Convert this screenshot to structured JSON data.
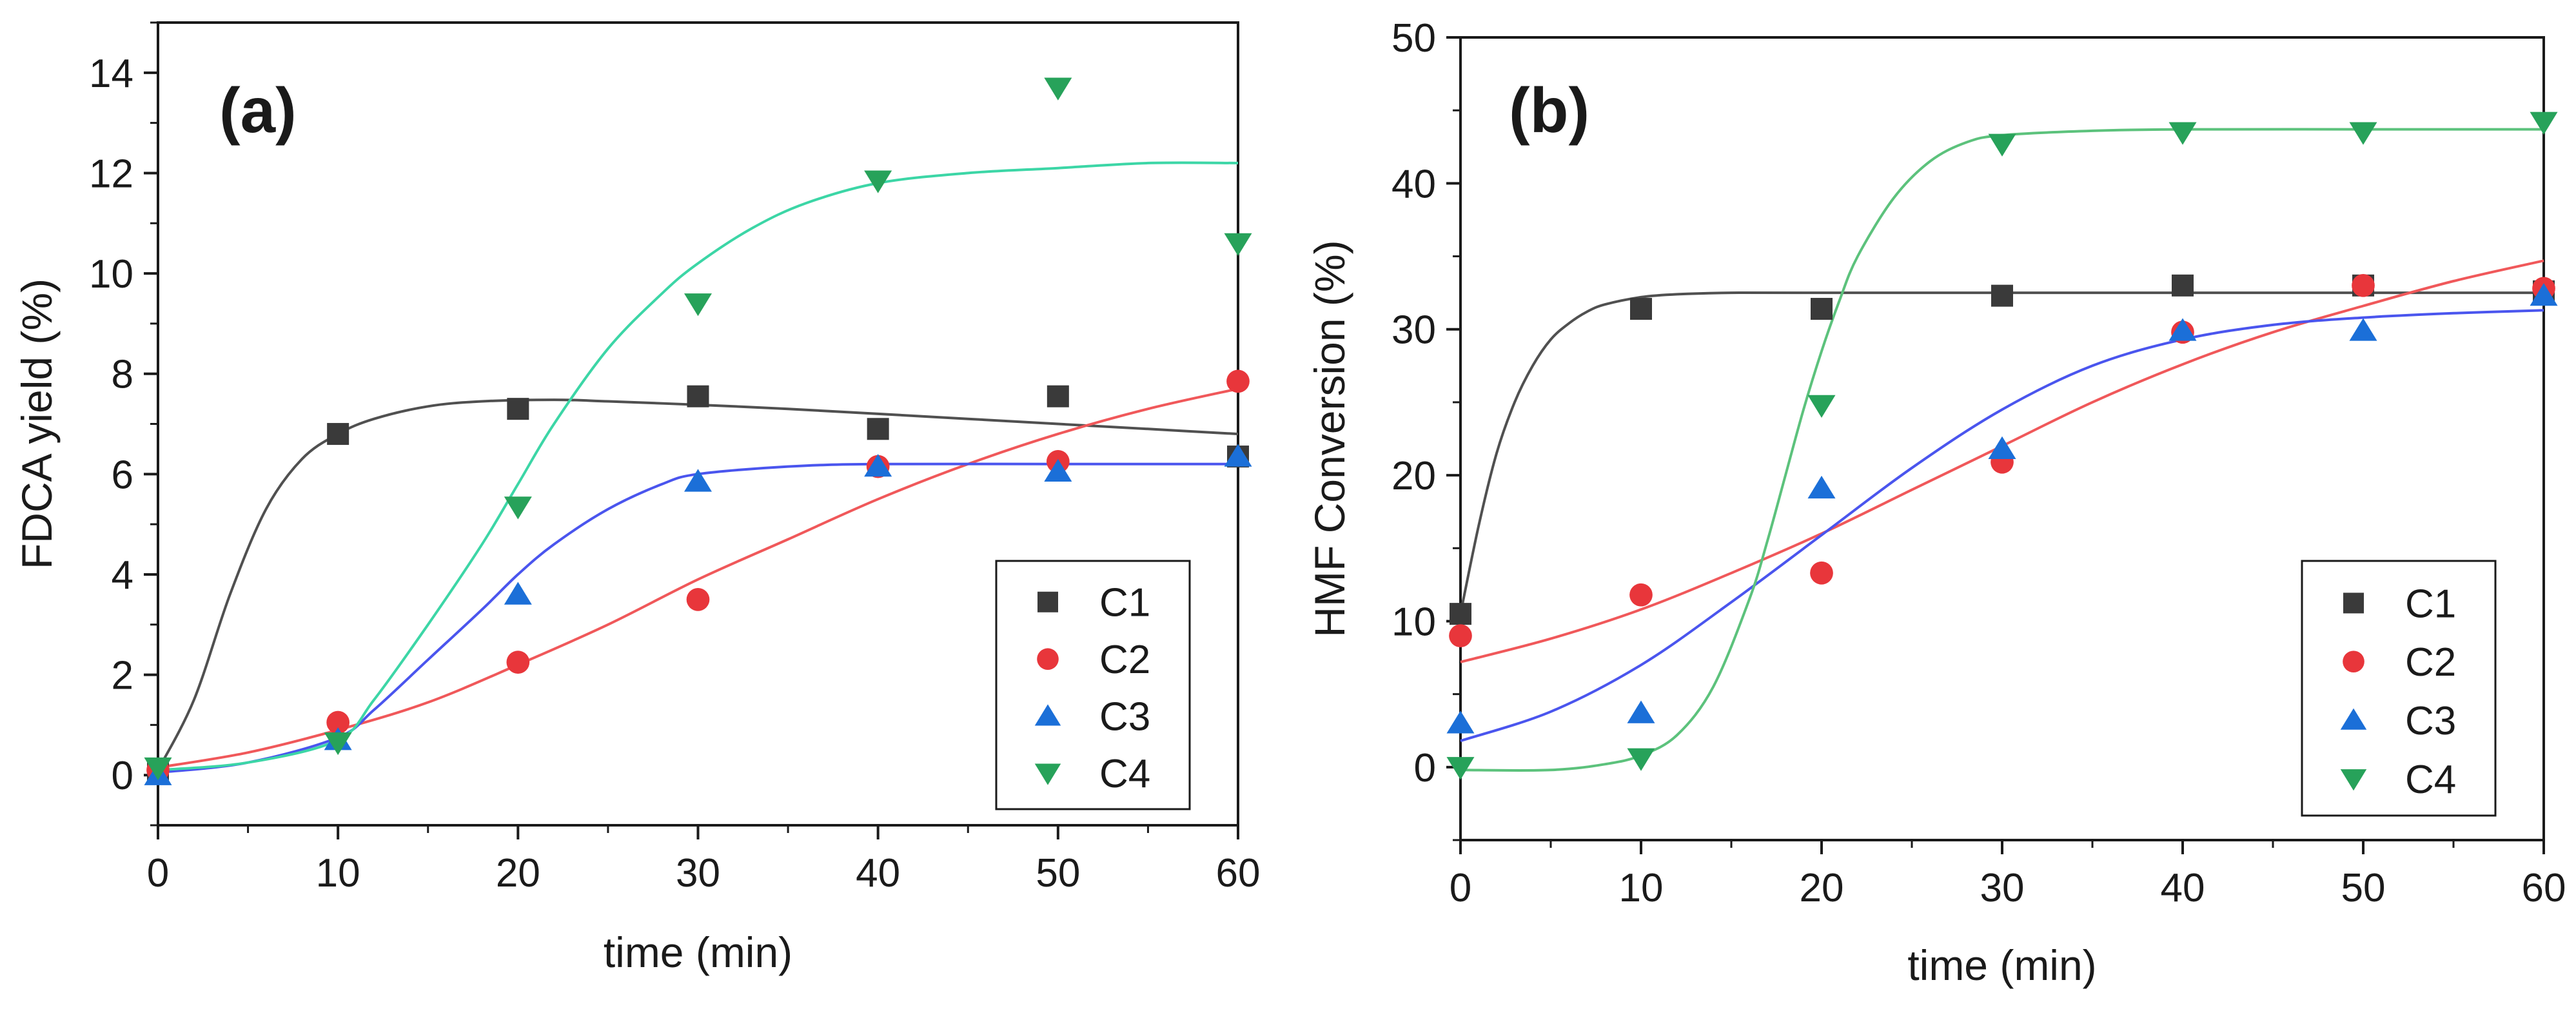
{
  "chart_data": [
    {
      "type": "scatter",
      "panel_label": "(a)",
      "xlabel": "time (min)",
      "ylabel": "FDCA yield (%)",
      "xlim": [
        0,
        60
      ],
      "ylim": [
        -1,
        15
      ],
      "xticks": [
        0,
        10,
        20,
        30,
        40,
        50,
        60
      ],
      "yticks": [
        0,
        2,
        4,
        6,
        8,
        10,
        12,
        14
      ],
      "legend_position": "bottom-right",
      "series": [
        {
          "name": "C1",
          "marker": "square",
          "color": "#3a3a3a",
          "fit_color": "#505050",
          "x": [
            0,
            10,
            20,
            30,
            40,
            50,
            60
          ],
          "y": [
            0.1,
            6.8,
            7.3,
            7.55,
            6.9,
            7.55,
            6.35
          ],
          "fit": {
            "x": [
              0,
              2,
              4,
              6,
              8,
              10,
              12,
              15,
              18,
              22,
              25,
              30,
              35,
              40,
              45,
              50,
              55,
              60
            ],
            "y": [
              0.1,
              1.5,
              3.6,
              5.3,
              6.3,
              6.8,
              7.1,
              7.35,
              7.45,
              7.48,
              7.45,
              7.38,
              7.3,
              7.2,
              7.1,
              7.0,
              6.9,
              6.8
            ]
          }
        },
        {
          "name": "C2",
          "marker": "circle",
          "color": "#e8363b",
          "fit_color": "#f0585a",
          "x": [
            0,
            10,
            20,
            30,
            40,
            50,
            60
          ],
          "y": [
            0.1,
            1.05,
            2.25,
            3.5,
            6.15,
            6.25,
            7.85
          ],
          "fit": {
            "x": [
              0,
              5,
              10,
              15,
              20,
              25,
              30,
              35,
              40,
              45,
              50,
              55,
              60
            ],
            "y": [
              0.15,
              0.45,
              0.9,
              1.45,
              2.2,
              3.0,
              3.9,
              4.7,
              5.5,
              6.2,
              6.8,
              7.3,
              7.7
            ]
          }
        },
        {
          "name": "C3",
          "marker": "triangle-up",
          "color": "#1b6fd8",
          "fit_color": "#4a55ee",
          "x": [
            0,
            10,
            20,
            30,
            40,
            50,
            60
          ],
          "y": [
            0.0,
            0.7,
            3.6,
            5.85,
            6.15,
            6.05,
            6.35
          ],
          "fit": {
            "x": [
              0,
              5,
              10,
              12,
              15,
              18,
              20,
              22,
              25,
              28,
              30,
              35,
              40,
              50,
              60
            ],
            "y": [
              0.05,
              0.25,
              0.75,
              1.3,
              2.3,
              3.3,
              4.0,
              4.6,
              5.3,
              5.8,
              6.0,
              6.15,
              6.2,
              6.2,
              6.2
            ]
          }
        },
        {
          "name": "C4",
          "marker": "triangle-down",
          "color": "#27a25a",
          "fit_color": "#3cd6a6",
          "x": [
            0,
            10,
            20,
            30,
            40,
            50,
            60
          ],
          "y": [
            0.15,
            0.65,
            5.35,
            9.4,
            11.85,
            13.7,
            10.6
          ],
          "fit": {
            "x": [
              0,
              5,
              10,
              12,
              15,
              18,
              20,
              22,
              25,
              28,
              30,
              33,
              36,
              40,
              45,
              50,
              55,
              60
            ],
            "y": [
              0.1,
              0.25,
              0.7,
              1.5,
              3.0,
              4.6,
              5.8,
              7.0,
              8.5,
              9.6,
              10.2,
              10.9,
              11.4,
              11.8,
              12.0,
              12.1,
              12.2,
              12.2
            ]
          }
        }
      ]
    },
    {
      "type": "scatter",
      "panel_label": "(b)",
      "xlabel": "time (min)",
      "ylabel": "HMF Conversion (%)",
      "xlim": [
        0,
        60
      ],
      "ylim": [
        -5,
        50
      ],
      "xticks": [
        0,
        10,
        20,
        30,
        40,
        50,
        60
      ],
      "yticks": [
        0,
        10,
        20,
        30,
        40,
        50
      ],
      "legend_position": "bottom-right",
      "series": [
        {
          "name": "C1",
          "marker": "square",
          "color": "#3a3a3a",
          "fit_color": "#505050",
          "x": [
            0,
            10,
            20,
            30,
            40,
            50,
            60
          ],
          "y": [
            10.5,
            31.4,
            31.4,
            32.3,
            33.0,
            33.0,
            32.6
          ],
          "fit": {
            "x": [
              0,
              1,
              2,
              3,
              4,
              5,
              6,
              7,
              8,
              10,
              12,
              15,
              20,
              30,
              40,
              50,
              60
            ],
            "y": [
              10.5,
              16.5,
              21.5,
              25.0,
              27.5,
              29.3,
              30.4,
              31.2,
              31.7,
              32.2,
              32.4,
              32.5,
              32.5,
              32.5,
              32.5,
              32.5,
              32.5
            ]
          }
        },
        {
          "name": "C2",
          "marker": "circle",
          "color": "#e8363b",
          "fit_color": "#f0585a",
          "x": [
            0,
            10,
            20,
            30,
            40,
            50,
            60
          ],
          "y": [
            9.0,
            11.8,
            13.3,
            20.9,
            29.8,
            33.0,
            32.8
          ],
          "fit": {
            "x": [
              0,
              5,
              10,
              15,
              20,
              25,
              30,
              35,
              40,
              45,
              50,
              55,
              60
            ],
            "y": [
              7.2,
              8.8,
              10.8,
              13.3,
              16.0,
              19.0,
              22.0,
              25.0,
              27.6,
              29.8,
              31.6,
              33.3,
              34.7
            ]
          }
        },
        {
          "name": "C3",
          "marker": "triangle-up",
          "color": "#1b6fd8",
          "fit_color": "#4a55ee",
          "x": [
            0,
            10,
            20,
            30,
            40,
            50,
            60
          ],
          "y": [
            3.0,
            3.7,
            19.1,
            21.8,
            29.9,
            29.9,
            32.3
          ],
          "fit": {
            "x": [
              0,
              5,
              10,
              15,
              20,
              25,
              30,
              35,
              40,
              45,
              50,
              55,
              60
            ],
            "y": [
              1.8,
              3.8,
              7.0,
              11.3,
              15.9,
              20.5,
              24.5,
              27.5,
              29.3,
              30.3,
              30.8,
              31.1,
              31.3
            ]
          }
        },
        {
          "name": "C4",
          "marker": "triangle-down",
          "color": "#27a25a",
          "fit_color": "#5cc27c",
          "x": [
            0,
            10,
            20,
            30,
            40,
            50,
            60
          ],
          "y": [
            0.0,
            0.6,
            24.8,
            42.7,
            43.5,
            43.5,
            44.2
          ],
          "fit": {
            "x": [
              0,
              5,
              8,
              10,
              12,
              14,
              16,
              17,
              18,
              19,
              20,
              21,
              22,
              24,
              26,
              28,
              30,
              35,
              40,
              50,
              60
            ],
            "y": [
              -0.2,
              -0.2,
              0.2,
              0.8,
              2.2,
              5.5,
              11.5,
              15.5,
              20.0,
              24.5,
              28.5,
              32.0,
              35.0,
              39.0,
              41.5,
              42.8,
              43.3,
              43.6,
              43.7,
              43.7,
              43.7
            ]
          }
        }
      ]
    }
  ]
}
